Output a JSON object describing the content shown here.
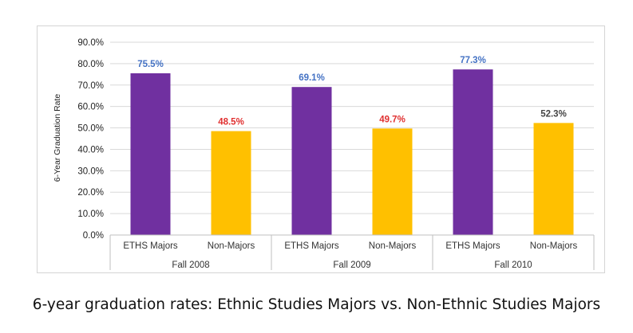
{
  "chart_data": {
    "type": "bar",
    "ylabel": "6-Year Graduation Rate",
    "ylim": [
      0,
      90
    ],
    "ytick_labels": [
      "0.0%",
      "10.0%",
      "20.0%",
      "30.0%",
      "40.0%",
      "50.0%",
      "60.0%",
      "70.0%",
      "80.0%",
      "90.0%"
    ],
    "grid": true,
    "groups": [
      {
        "label": "Fall 2008",
        "bars": [
          {
            "category": "ETHS Majors",
            "value": 75.5,
            "label": "75.5%"
          },
          {
            "category": "Non-Majors",
            "value": 48.5,
            "label": "48.5%"
          }
        ]
      },
      {
        "label": "Fall 2009",
        "bars": [
          {
            "category": "ETHS Majors",
            "value": 69.1,
            "label": "69.1%"
          },
          {
            "category": "Non-Majors",
            "value": 49.7,
            "label": "49.7%"
          }
        ]
      },
      {
        "label": "Fall 2010",
        "bars": [
          {
            "category": "ETHS Majors",
            "value": 77.3,
            "label": "77.3%"
          },
          {
            "category": "Non-Majors",
            "value": 52.3,
            "label": "52.3%"
          }
        ]
      }
    ],
    "colors": {
      "ETHS Majors": "#7030a0",
      "Non-Majors": "#ffc000",
      "label_ETHS": "#4472c4",
      "label_Non": "#e03030",
      "label_plain": "#444444",
      "grid": "#d9d9d9",
      "axis": "#bfbfbf"
    },
    "label_color_keys": [
      "label_ETHS",
      "label_Non",
      "label_ETHS",
      "label_Non",
      "label_ETHS",
      "label_plain"
    ]
  },
  "caption": "6-year graduation rates: Ethnic Studies Majors vs. Non-Ethnic Studies Majors"
}
